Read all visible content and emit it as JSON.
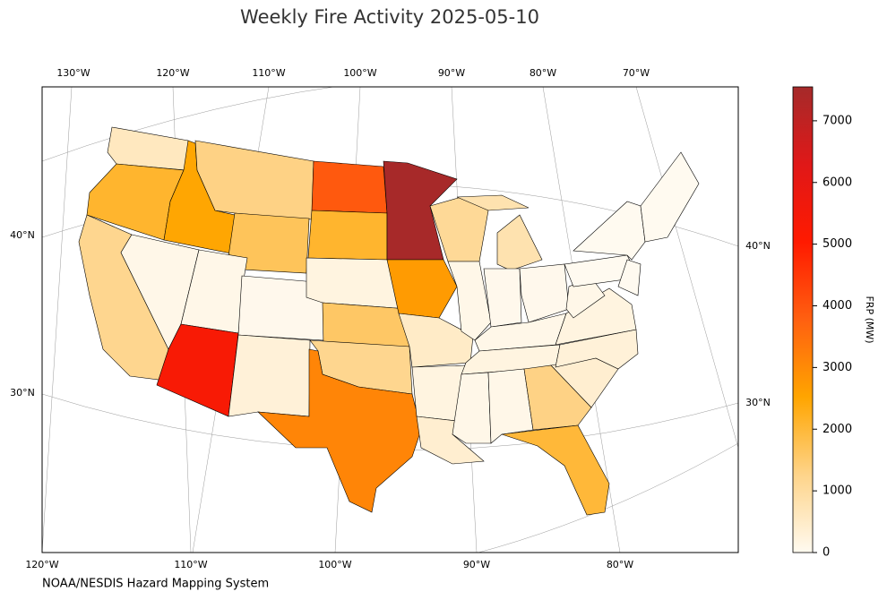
{
  "chart_data": {
    "type": "choropleth",
    "title": "Weekly Fire Activity 2025-05-10",
    "source": "NOAA/NESDIS Hazard Mapping System",
    "x_top_labels": [
      "130°W",
      "120°W",
      "110°W",
      "100°W",
      "90°W",
      "80°W",
      "70°W"
    ],
    "x_bottom_labels": [
      "120°W",
      "110°W",
      "100°W",
      "90°W",
      "80°W"
    ],
    "y_left_labels": [
      "40°N",
      "30°N"
    ],
    "y_right_labels": [
      "40°N",
      "30°N"
    ],
    "values": [
      600,
      2100,
      1200,
      2500,
      1300,
      1700,
      100,
      100,
      5300,
      50,
      300,
      3900,
      2100,
      200,
      1600,
      1200,
      3100,
      7500,
      2700,
      500,
      200,
      400,
      1100,
      100,
      800,
      800,
      50,
      50,
      100,
      200,
      100,
      100,
      1300,
      2000,
      400,
      300,
      200,
      100,
      0,
      0,
      0,
      0
    ],
    "colorbar": {
      "label": "FRP (MW)",
      "lim": [
        0,
        7550
      ],
      "ticks": [
        0,
        1000,
        2000,
        3000,
        4000,
        5000,
        6000,
        7000
      ],
      "colors": [
        "#fffaf0",
        "#fed48a",
        "#ffa500",
        "#ff6010",
        "#ff1a00",
        "#e01818",
        "#a52a2a"
      ]
    }
  }
}
